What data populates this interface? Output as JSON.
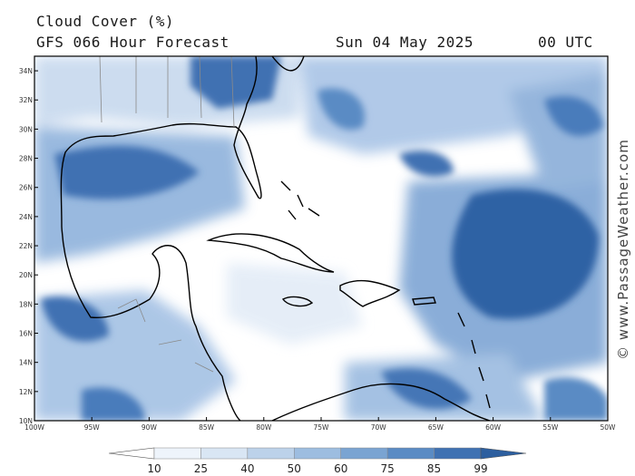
{
  "header": {
    "title": "Cloud Cover (%)",
    "model": "GFS 066 Hour Forecast",
    "date": "Sun 04 May 2025",
    "time": "00 UTC"
  },
  "credit": "© www.PassageWeather.com",
  "map": {
    "lon_range": [
      -100,
      -50
    ],
    "lat_range": [
      10,
      35
    ],
    "lon_ticks": [
      "100W",
      "95W",
      "90W",
      "85W",
      "80W",
      "75W",
      "70W",
      "65W",
      "60W",
      "55W",
      "50W"
    ],
    "lat_ticks": [
      "10N",
      "12N",
      "14N",
      "16N",
      "18N",
      "20N",
      "22N",
      "24N",
      "26N",
      "28N",
      "30N",
      "32N",
      "34N"
    ]
  },
  "colorbar": {
    "labels": [
      "10",
      "25",
      "40",
      "50",
      "60",
      "75",
      "85",
      "99"
    ],
    "colors": [
      "#ffffff",
      "#eef4fb",
      "#d9e6f4",
      "#bcd2ea",
      "#9dbde0",
      "#7aa4d2",
      "#5a8bc4",
      "#3f71b2",
      "#2d5f9f"
    ]
  }
}
